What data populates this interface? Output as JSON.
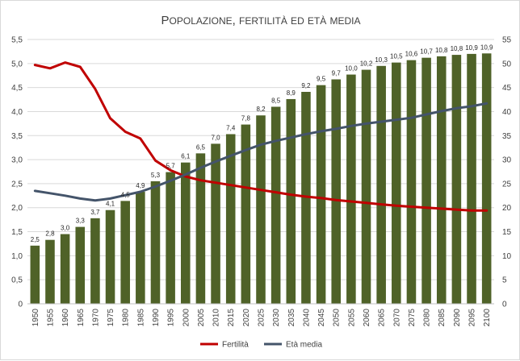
{
  "chart_data": {
    "type": "bar",
    "title": "Popolazione, fertilità ed età media",
    "categories": [
      "1950",
      "1955",
      "1960",
      "1965",
      "1970",
      "1975",
      "1980",
      "1985",
      "1990",
      "1995",
      "2000",
      "2005",
      "2010",
      "2015",
      "2020",
      "2025",
      "2030",
      "2035",
      "2040",
      "2045",
      "2050",
      "2055",
      "2060",
      "2065",
      "2070",
      "2075",
      "2080",
      "2085",
      "2090",
      "2095",
      "2100"
    ],
    "y_left": {
      "min": 0,
      "max": 5.5,
      "step": 0.5,
      "tick_labels": [
        "0",
        "0,5",
        "1,0",
        "1,5",
        "2,0",
        "2,5",
        "3,0",
        "3,5",
        "4,0",
        "4,5",
        "5,0",
        "5,5"
      ]
    },
    "y_right": {
      "min": 0,
      "max": 55,
      "step": 5,
      "tick_labels": [
        "0",
        "5",
        "10",
        "15",
        "20",
        "25",
        "30",
        "35",
        "40",
        "45",
        "50",
        "55"
      ]
    },
    "grid": true,
    "legend_position": "bottom",
    "series": [
      {
        "type": "bar",
        "axis": "left",
        "color": "#4f6228",
        "values": [
          1.21,
          1.33,
          1.45,
          1.6,
          1.78,
          1.95,
          2.14,
          2.33,
          2.55,
          2.74,
          2.94,
          3.13,
          3.33,
          3.53,
          3.73,
          3.92,
          4.1,
          4.26,
          4.41,
          4.55,
          4.67,
          4.77,
          4.87,
          4.95,
          5.02,
          5.07,
          5.12,
          5.15,
          5.18,
          5.2,
          5.21
        ],
        "labels": [
          "2,5",
          "2,8",
          "3,0",
          "3,3",
          "3,7",
          "4,1",
          "4,5",
          "4,9",
          "5,3",
          "5,7",
          "6,1",
          "6,5",
          "7,0",
          "7,4",
          "7,8",
          "8,2",
          "8,5",
          "8,9",
          "9,2",
          "9,5",
          "9,7",
          "10,0",
          "10,2",
          "10,3",
          "10,5",
          "10,6",
          "10,7",
          "10,8",
          "10,8",
          "10,9",
          "10,9"
        ]
      },
      {
        "name": "Fertilità",
        "type": "line",
        "axis": "left",
        "color": "#c00000",
        "values": [
          4.97,
          4.9,
          5.02,
          4.93,
          4.47,
          3.86,
          3.58,
          3.44,
          2.98,
          2.78,
          2.65,
          2.57,
          2.52,
          2.47,
          2.42,
          2.37,
          2.32,
          2.27,
          2.23,
          2.2,
          2.16,
          2.13,
          2.1,
          2.07,
          2.04,
          2.02,
          2.0,
          1.98,
          1.96,
          1.94,
          1.94
        ]
      },
      {
        "name": "Età media",
        "type": "line",
        "axis": "right",
        "color": "#44546a",
        "values": [
          23.5,
          23.0,
          22.5,
          21.9,
          21.5,
          21.9,
          22.6,
          23.3,
          24.4,
          25.6,
          26.9,
          28.3,
          29.6,
          30.8,
          32.0,
          33.1,
          33.9,
          34.6,
          35.3,
          35.9,
          36.4,
          37.0,
          37.5,
          37.9,
          38.3,
          38.7,
          39.4,
          40.1,
          40.7,
          41.1,
          41.7
        ]
      }
    ]
  }
}
